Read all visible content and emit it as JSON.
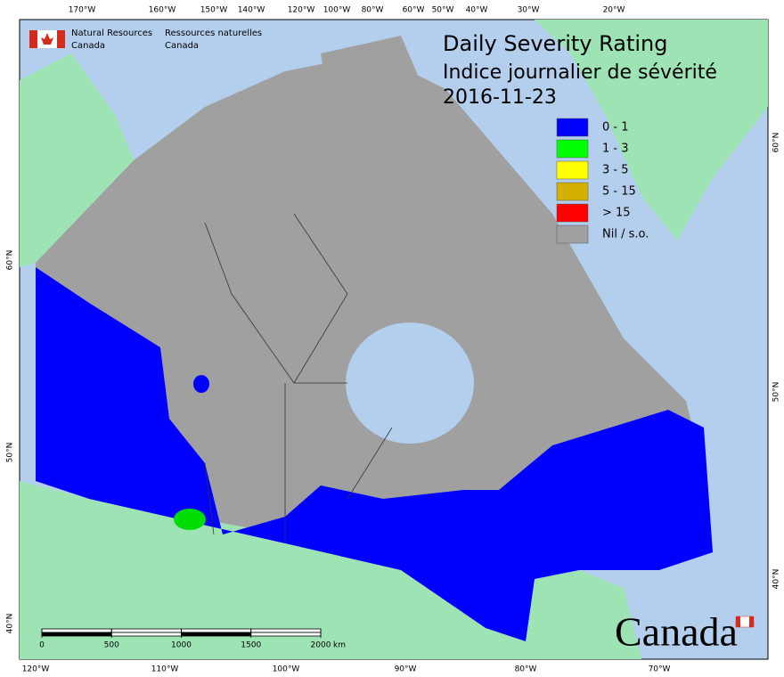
{
  "header": {
    "en": [
      "Natural Resources",
      "Canada"
    ],
    "fr": [
      "Ressources naturelles",
      "Canada"
    ]
  },
  "title": {
    "en": "Daily Severity Rating",
    "fr": "Indice journalier de sévérité",
    "date": "2016-11-23"
  },
  "legend": [
    {
      "label": "0 - 1",
      "color": "#0000ff"
    },
    {
      "label": "1 - 3",
      "color": "#00ff00"
    },
    {
      "label": "3 - 5",
      "color": "#ffff00"
    },
    {
      "label": "5 - 15",
      "color": "#d4b000"
    },
    {
      "label": "> 15",
      "color": "#ff0000"
    },
    {
      "label": "Nil / s.o.",
      "color": "#a0a0a0"
    }
  ],
  "graticule": {
    "top": [
      "170°W",
      "160°W",
      "150°W",
      "140°W",
      "120°W",
      "100°W",
      "80°W",
      "60°W",
      "50°W",
      "40°W",
      "30°W",
      "20°W"
    ],
    "bottom": [
      "120°W",
      "110°W",
      "100°W",
      "90°W",
      "80°W",
      "70°W"
    ],
    "left": [
      "60°N",
      "50°N",
      "40°N"
    ],
    "right": [
      "60°N",
      "50°N",
      "40°N"
    ]
  },
  "scale_bar": {
    "ticks": [
      0,
      500,
      1000,
      1500,
      2000
    ],
    "unit": "km"
  },
  "wordmark": "Canada"
}
